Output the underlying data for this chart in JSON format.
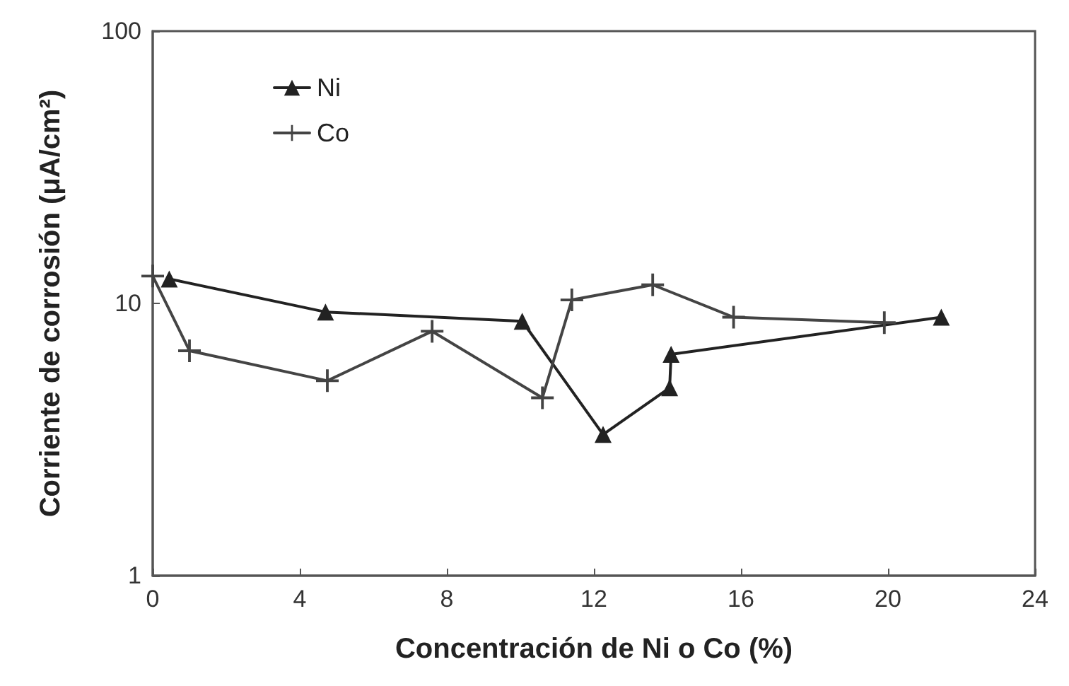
{
  "chart_data": {
    "type": "line",
    "xlabel": "Concentración de Ni o Co (%)",
    "ylabel": "Corriente de corrosión (μA/cm²)",
    "xlim": [
      0,
      24
    ],
    "xticks": [
      0,
      4,
      8,
      12,
      16,
      20,
      24
    ],
    "ylim": [
      1,
      100
    ],
    "yticks": [
      1,
      10,
      100
    ],
    "log": "y",
    "grid": false,
    "legend": "top left",
    "series": [
      {
        "name": "Ni",
        "color": "#222222",
        "marker": "triangle",
        "x": [
          0.45,
          4.7,
          10.05,
          12.25,
          14.06,
          14.1,
          21.45
        ],
        "values": [
          12.3,
          9.3,
          8.6,
          3.3,
          4.9,
          6.5,
          8.9
        ]
      },
      {
        "name": "Co",
        "color": "#444444",
        "marker": "cross",
        "x": [
          0,
          1.0,
          4.75,
          7.6,
          10.6,
          11.4,
          13.6,
          15.8,
          19.9
        ],
        "values": [
          12.6,
          6.7,
          5.2,
          7.9,
          4.5,
          10.3,
          11.7,
          8.9,
          8.5
        ]
      }
    ]
  }
}
